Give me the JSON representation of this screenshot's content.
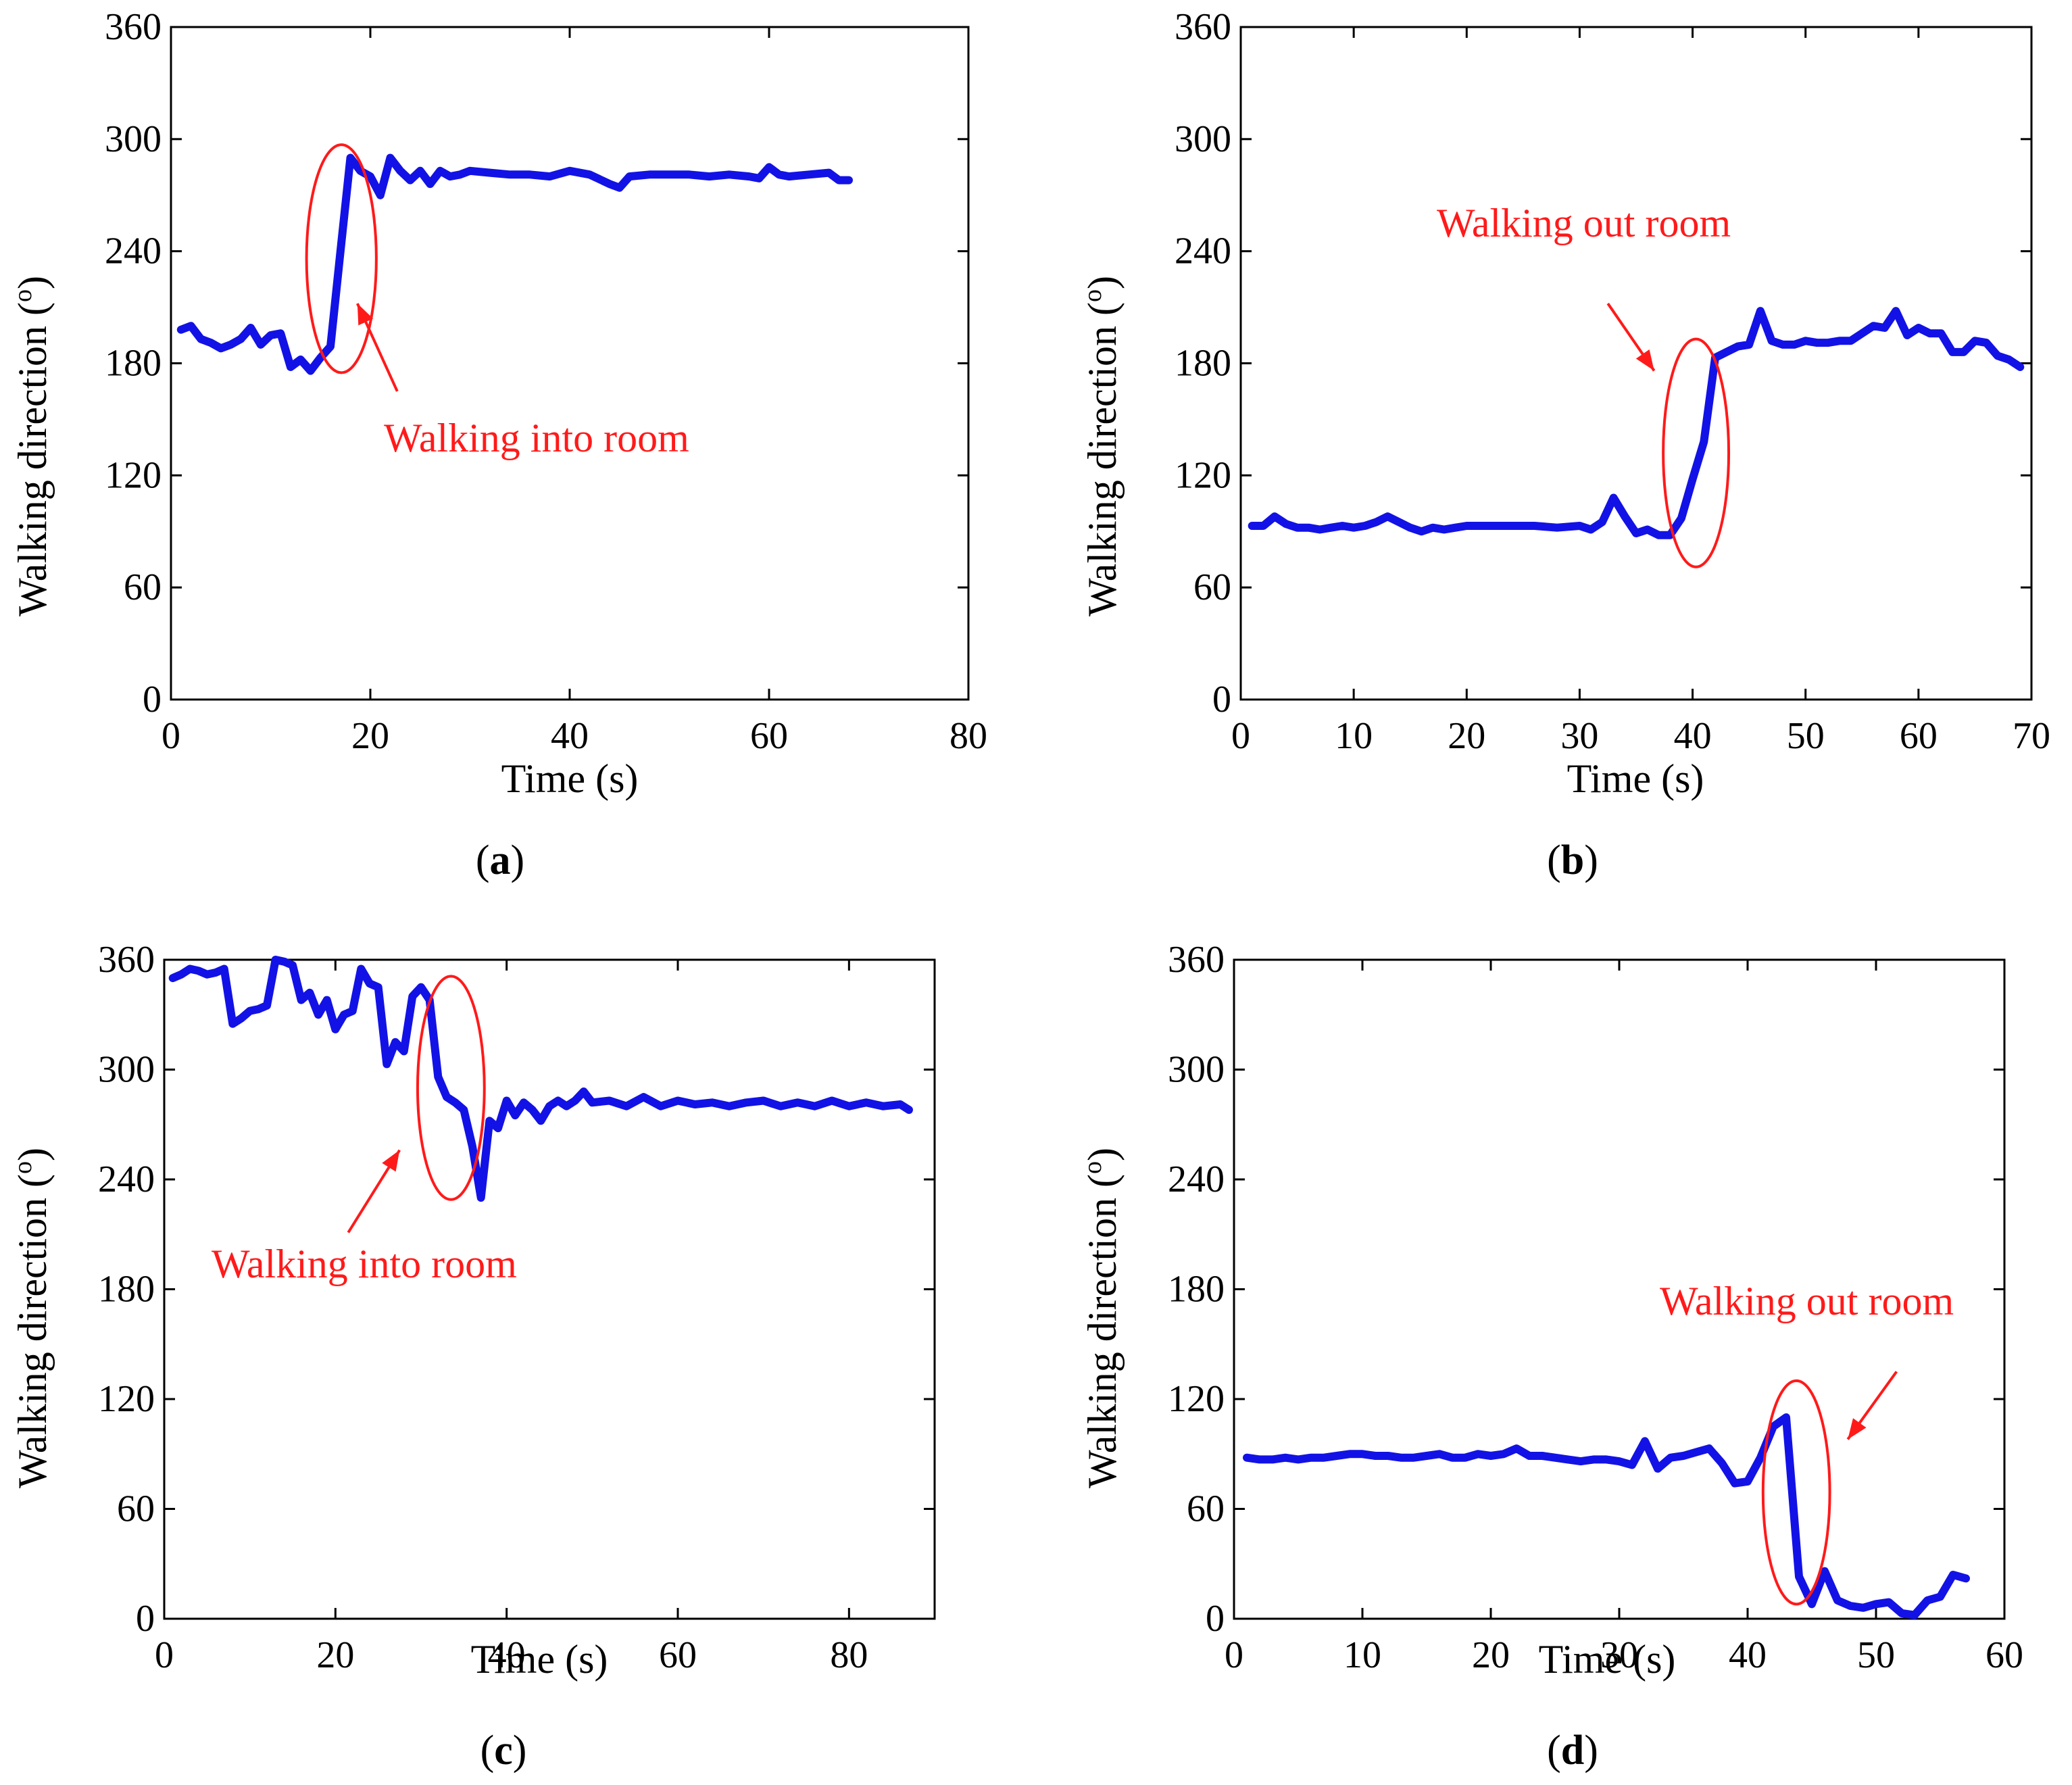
{
  "colors": {
    "series": "#1212e6",
    "annotation": "#ff1a1a",
    "axis": "#000000"
  },
  "panel_labels": {
    "a": {
      "open": "(",
      "letter": "a",
      "close": ")"
    },
    "b": {
      "open": "(",
      "letter": "b",
      "close": ")"
    },
    "c": {
      "open": "(",
      "letter": "c",
      "close": ")"
    },
    "d": {
      "open": "(",
      "letter": "d",
      "close": ")"
    }
  },
  "chart_data": [
    {
      "id": "a",
      "type": "line",
      "xlabel": "Time (s)",
      "ylabel": "Walking direction",
      "ylabel_unit_open": "(",
      "ylabel_unit_sup": "o",
      "ylabel_unit_close": ")",
      "xlim": [
        0,
        80
      ],
      "ylim": [
        0,
        360
      ],
      "xticks": [
        0,
        20,
        40,
        60,
        80
      ],
      "yticks": [
        0,
        60,
        120,
        180,
        240,
        300,
        360
      ],
      "annotation": "Walking into room",
      "series": [
        {
          "name": "Walking direction",
          "x": [
            1,
            2,
            3,
            4,
            5,
            6,
            7,
            8,
            9,
            10,
            11,
            12,
            13,
            14,
            15,
            16,
            17,
            18,
            19,
            20,
            21,
            22,
            23,
            24,
            25,
            26,
            27,
            28,
            29,
            30,
            32,
            34,
            36,
            38,
            40,
            42,
            44,
            45,
            46,
            48,
            50,
            52,
            54,
            56,
            58,
            59,
            60,
            61,
            62,
            64,
            66,
            67,
            68
          ],
          "y": [
            198,
            200,
            193,
            191,
            188,
            190,
            193,
            199,
            190,
            195,
            196,
            178,
            182,
            176,
            183,
            189,
            240,
            290,
            283,
            280,
            270,
            290,
            283,
            278,
            283,
            276,
            283,
            280,
            281,
            283,
            282,
            281,
            281,
            280,
            283,
            281,
            276,
            274,
            280,
            281,
            281,
            281,
            280,
            281,
            280,
            279,
            285,
            281,
            280,
            281,
            282,
            278,
            278
          ]
        }
      ],
      "ellipse": {
        "cx": 17.1,
        "cy": 236,
        "rx": 3.5,
        "ry": 61
      },
      "arrow": {
        "from": [
          22.7,
          165
        ],
        "to": [
          18.7,
          212
        ]
      }
    },
    {
      "id": "b",
      "type": "line",
      "xlabel": "Time (s)",
      "ylabel": "Walking direction",
      "ylabel_unit_open": "(",
      "ylabel_unit_sup": "o",
      "ylabel_unit_close": ")",
      "xlim": [
        0,
        70
      ],
      "ylim": [
        0,
        360
      ],
      "xticks": [
        0,
        10,
        20,
        30,
        40,
        50,
        60,
        70
      ],
      "yticks": [
        0,
        60,
        120,
        180,
        240,
        300,
        360
      ],
      "annotation": "Walking out room",
      "series": [
        {
          "name": "Walking direction",
          "x": [
            1,
            2,
            3,
            4,
            5,
            6,
            7,
            8,
            9,
            10,
            11,
            12,
            13,
            14,
            15,
            16,
            17,
            18,
            19,
            20,
            22,
            24,
            26,
            28,
            30,
            31,
            32,
            33,
            34,
            35,
            36,
            37,
            38,
            39,
            40,
            41,
            42,
            43,
            44,
            45,
            46,
            47,
            48,
            49,
            50,
            51,
            52,
            53,
            54,
            55,
            56,
            57,
            58,
            59,
            60,
            61,
            62,
            63,
            64,
            65,
            66,
            67,
            68,
            69
          ],
          "y": [
            93,
            93,
            98,
            94,
            92,
            92,
            91,
            92,
            93,
            92,
            93,
            95,
            98,
            95,
            92,
            90,
            92,
            91,
            92,
            93,
            93,
            93,
            93,
            92,
            93,
            91,
            95,
            108,
            98,
            89,
            91,
            88,
            88,
            97,
            118,
            138,
            183,
            186,
            189,
            190,
            208,
            192,
            190,
            190,
            192,
            191,
            191,
            192,
            192,
            196,
            200,
            199,
            208,
            195,
            199,
            196,
            196,
            186,
            186,
            192,
            191,
            184,
            182,
            178
          ]
        }
      ],
      "ellipse": {
        "cx": 40.3,
        "cy": 132,
        "rx": 2.9,
        "ry": 61
      },
      "arrow": {
        "from": [
          32.5,
          212
        ],
        "to": [
          36.6,
          176
        ]
      }
    },
    {
      "id": "c",
      "type": "line",
      "xlabel": "Time (s)",
      "ylabel": "Walking direction",
      "ylabel_unit_open": "(",
      "ylabel_unit_sup": "o",
      "ylabel_unit_close": ")",
      "xlim": [
        0,
        90
      ],
      "ylim": [
        0,
        360
      ],
      "xticks": [
        0,
        20,
        40,
        60,
        80
      ],
      "yticks": [
        0,
        60,
        120,
        180,
        240,
        300,
        360
      ],
      "annotation": "Walking into room",
      "series": [
        {
          "name": "Walking direction",
          "x": [
            1,
            2,
            3,
            4,
            5,
            6,
            7,
            8,
            9,
            10,
            11,
            12,
            13,
            14,
            15,
            16,
            17,
            18,
            19,
            20,
            21,
            22,
            23,
            24,
            25,
            26,
            27,
            28,
            29,
            30,
            31,
            32,
            33,
            34,
            35,
            36,
            37,
            38,
            39,
            40,
            41,
            42,
            43,
            44,
            45,
            46,
            47,
            48,
            49,
            50,
            52,
            54,
            56,
            58,
            60,
            62,
            64,
            66,
            68,
            70,
            72,
            74,
            76,
            78,
            80,
            82,
            84,
            86,
            87
          ],
          "y": [
            350,
            352,
            355,
            354,
            352,
            353,
            355,
            325,
            328,
            332,
            333,
            335,
            360,
            359,
            357,
            338,
            342,
            330,
            338,
            322,
            330,
            332,
            355,
            347,
            345,
            303,
            315,
            310,
            340,
            345,
            338,
            296,
            285,
            282,
            278,
            258,
            230,
            272,
            268,
            283,
            275,
            282,
            278,
            272,
            280,
            283,
            280,
            283,
            288,
            282,
            283,
            280,
            285,
            280,
            283,
            281,
            282,
            280,
            282,
            283,
            280,
            282,
            280,
            283,
            280,
            282,
            280,
            281,
            278
          ]
        }
      ],
      "ellipse": {
        "cx": 33.5,
        "cy": 290,
        "rx": 3.9,
        "ry": 61
      },
      "arrow": {
        "from": [
          21.5,
          211
        ],
        "to": [
          27.5,
          256
        ]
      }
    },
    {
      "id": "d",
      "type": "line",
      "xlabel": "Time (s)",
      "ylabel": "Walking direction",
      "ylabel_unit_open": "(",
      "ylabel_unit_sup": "o",
      "ylabel_unit_close": ")",
      "xlim": [
        0,
        60
      ],
      "ylim": [
        0,
        360
      ],
      "xticks": [
        0,
        10,
        20,
        30,
        40,
        50,
        60
      ],
      "yticks": [
        0,
        60,
        120,
        180,
        240,
        300,
        360
      ],
      "annotation": "Walking out room",
      "series": [
        {
          "name": "Walking direction",
          "x": [
            1,
            2,
            3,
            4,
            5,
            6,
            7,
            8,
            9,
            10,
            11,
            12,
            13,
            14,
            15,
            16,
            17,
            18,
            19,
            20,
            21,
            22,
            23,
            24,
            25,
            26,
            27,
            28,
            29,
            30,
            31,
            32,
            33,
            34,
            35,
            36,
            37,
            38,
            39,
            40,
            41,
            42,
            43,
            44,
            45,
            46,
            47,
            48,
            49,
            50,
            51,
            52,
            53,
            54,
            55,
            56,
            57
          ],
          "y": [
            88,
            87,
            87,
            88,
            87,
            88,
            88,
            89,
            90,
            90,
            89,
            89,
            88,
            88,
            89,
            90,
            88,
            88,
            90,
            89,
            90,
            93,
            89,
            89,
            88,
            87,
            86,
            87,
            87,
            86,
            84,
            97,
            82,
            88,
            89,
            91,
            93,
            85,
            74,
            75,
            88,
            105,
            110,
            23,
            8,
            26,
            10,
            7,
            6,
            8,
            9,
            3,
            2,
            10,
            12,
            24,
            22
          ]
        }
      ],
      "ellipse": {
        "cx": 43.8,
        "cy": 69,
        "rx": 2.6,
        "ry": 61
      },
      "arrow": {
        "from": [
          51.6,
          135
        ],
        "to": [
          47.8,
          98
        ]
      }
    }
  ]
}
